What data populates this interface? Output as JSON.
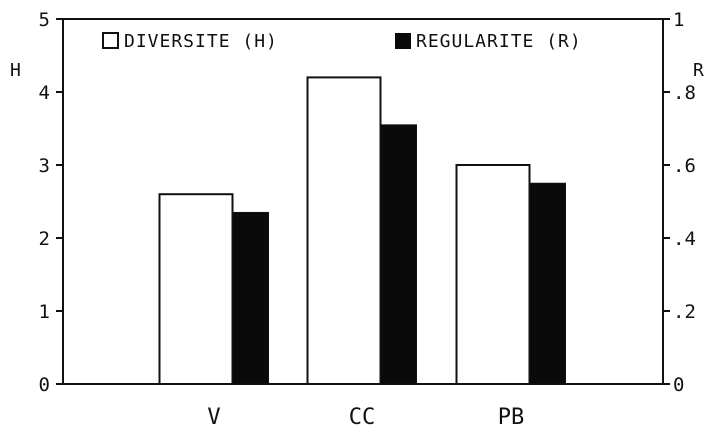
{
  "chart_data": {
    "type": "bar",
    "categories": [
      "V",
      "CC",
      "PB"
    ],
    "series": [
      {
        "name": "DIVERSITE (H)",
        "axis": "left",
        "fill": "#ffffff",
        "values": [
          2.6,
          4.2,
          3.0
        ]
      },
      {
        "name": "REGULARITE (R)",
        "axis": "right",
        "fill": "#0a0a0a",
        "values": [
          0.47,
          0.71,
          0.55
        ]
      }
    ],
    "left_axis": {
      "label": "H",
      "ylim": [
        0,
        5
      ],
      "ticks": [
        "0",
        "1",
        "2",
        "3",
        "4",
        "5"
      ]
    },
    "right_axis": {
      "label": "R",
      "ylim": [
        0,
        1
      ],
      "ticks": [
        "0",
        ".2",
        ".4",
        ".6",
        ".8",
        "1"
      ]
    },
    "legend": {
      "placement": "top"
    },
    "grid": false
  }
}
